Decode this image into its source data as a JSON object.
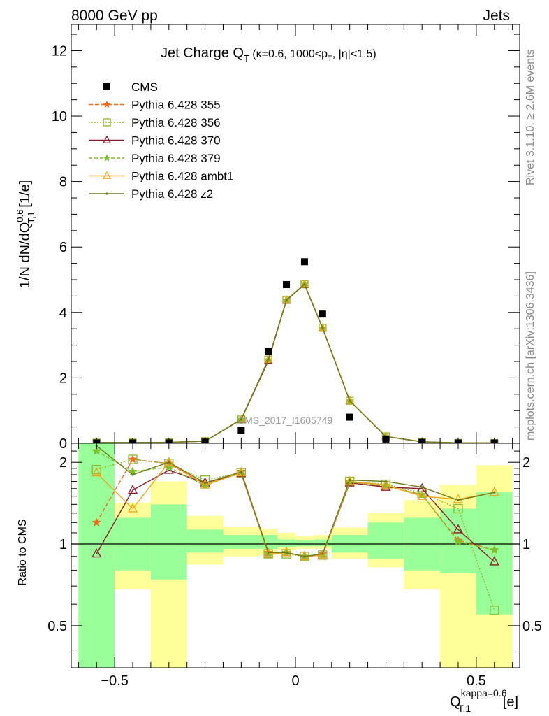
{
  "header": {
    "left": "8000 GeV pp",
    "right": "Jets",
    "side_rivet": "Rivet 3.1.10, ≥ 2.6M events",
    "side_mcplots": "mcplots.cern.ch [arXiv:1306.3436]"
  },
  "chart_data": [
    {
      "type": "scatter",
      "title": {
        "main": "Jet Charge Q",
        "main_sub": "T",
        "rest_a": " (κ=0.6, 1000<p",
        "rest_sub": "T",
        "rest_b": ", |η|<1.5)"
      },
      "ylabel": {
        "a": "1/N dN/dQ",
        "sup": "0.6",
        "sub": "T,1",
        "b": " [1/e]"
      },
      "watermark": "CMS_2017_I1605749",
      "xlim": [
        -0.62,
        0.62
      ],
      "ylim": [
        0,
        12.8
      ],
      "y_ticks": [
        0,
        2,
        4,
        6,
        8,
        10,
        12
      ],
      "y_tick_labels": [
        "0",
        "2",
        "4",
        "6",
        "8",
        "10",
        "12"
      ],
      "x": [
        -0.55,
        -0.45,
        -0.35,
        -0.25,
        -0.15,
        -0.075,
        -0.025,
        0.025,
        0.075,
        0.15,
        0.25,
        0.35,
        0.45,
        0.55
      ],
      "data": {
        "name": "CMS",
        "values": [
          0.012,
          0.012,
          0.015,
          0.04,
          0.4,
          2.8,
          4.85,
          5.55,
          3.95,
          0.8,
          0.13,
          0.03,
          0.01,
          0.01
        ]
      },
      "series": [
        {
          "name": "Pythia 6.428 355",
          "color": "#f26a1f",
          "dash": "6,3",
          "marker": "star",
          "values": [
            0.014,
            0.025,
            0.03,
            0.065,
            0.73,
            2.55,
            4.37,
            4.86,
            3.52,
            1.3,
            0.21,
            0.045,
            0.012,
            0.01
          ]
        },
        {
          "name": "Pythia 6.428 356",
          "color": "#8db82a",
          "dash": "2,2",
          "marker": "square",
          "values": [
            0.022,
            0.025,
            0.03,
            0.066,
            0.73,
            2.56,
            4.38,
            4.86,
            3.53,
            1.3,
            0.21,
            0.046,
            0.013,
            0.006
          ]
        },
        {
          "name": "Pythia 6.428 370",
          "color": "#8b1a2a",
          "dash": "",
          "marker": "triangle",
          "values": [
            0.011,
            0.019,
            0.028,
            0.065,
            0.72,
            2.52,
            4.37,
            4.85,
            3.52,
            1.3,
            0.21,
            0.046,
            0.011,
            0.009
          ]
        },
        {
          "name": "Pythia 6.428 379",
          "color": "#7cc02a",
          "dash": "5,3",
          "marker": "star",
          "values": [
            0.026,
            0.022,
            0.03,
            0.065,
            0.73,
            2.55,
            4.37,
            4.86,
            3.52,
            1.3,
            0.21,
            0.045,
            0.011,
            0.01
          ]
        },
        {
          "name": "Pythia 6.428 ambt1",
          "color": "#f2a51a",
          "dash": "",
          "marker": "triangle",
          "values": [
            0.024,
            0.016,
            0.03,
            0.066,
            0.73,
            2.56,
            4.38,
            4.86,
            3.53,
            1.3,
            0.21,
            0.046,
            0.014,
            0.016
          ]
        },
        {
          "name": "Pythia 6.428 z2",
          "color": "#6b7a1a",
          "dash": "",
          "marker": "dot",
          "values": [
            0.028,
            0.021,
            0.03,
            0.066,
            0.73,
            2.56,
            4.38,
            4.86,
            3.53,
            1.3,
            0.21,
            0.047,
            0.014,
            0.016
          ]
        }
      ]
    },
    {
      "type": "scatter",
      "ylabel": "Ratio to CMS",
      "xlabel": {
        "a": "Q",
        "sup": "kappa=0.6",
        "sub": "T,1",
        "b": " [e]"
      },
      "xlim": [
        -0.62,
        0.62
      ],
      "ylim": [
        0.35,
        2.35
      ],
      "x_ticks": [
        -0.5,
        0,
        0.5
      ],
      "x_tick_labels": [
        "−0.5",
        "0",
        "0.5"
      ],
      "y_ticks": [
        0.5,
        1,
        2
      ],
      "y_tick_labels": [
        "0.5",
        "1",
        "2"
      ],
      "reference": 1,
      "bins": [
        [
          -0.6,
          -0.5
        ],
        [
          -0.5,
          -0.4
        ],
        [
          -0.4,
          -0.3
        ],
        [
          -0.3,
          -0.2
        ],
        [
          -0.2,
          -0.1
        ],
        [
          -0.1,
          -0.05
        ],
        [
          -0.05,
          0
        ],
        [
          0,
          0.05
        ],
        [
          0.05,
          0.1
        ],
        [
          0.1,
          0.2
        ],
        [
          0.2,
          0.3
        ],
        [
          0.3,
          0.4
        ],
        [
          0.4,
          0.5
        ],
        [
          0.5,
          0.6
        ]
      ],
      "band_1sigma": [
        [
          0.35,
          2.35
        ],
        [
          0.8,
          1.25
        ],
        [
          0.74,
          1.4
        ],
        [
          0.93,
          1.13
        ],
        [
          0.96,
          1.08
        ],
        [
          0.96,
          1.08
        ],
        [
          0.975,
          1.04
        ],
        [
          0.98,
          1.03
        ],
        [
          0.98,
          1.04
        ],
        [
          0.93,
          1.08
        ],
        [
          0.88,
          1.2
        ],
        [
          0.8,
          1.25
        ],
        [
          0.78,
          1.35
        ],
        [
          0.55,
          1.55
        ]
      ],
      "band_2sigma": [
        [
          0.35,
          2.35
        ],
        [
          0.68,
          1.42
        ],
        [
          0.35,
          1.7
        ],
        [
          0.84,
          1.27
        ],
        [
          0.9,
          1.16
        ],
        [
          0.91,
          1.14
        ],
        [
          0.95,
          1.1
        ],
        [
          0.96,
          1.07
        ],
        [
          0.96,
          1.08
        ],
        [
          0.88,
          1.15
        ],
        [
          0.82,
          1.3
        ],
        [
          0.68,
          1.45
        ],
        [
          0.35,
          1.65
        ],
        [
          0.35,
          1.95
        ]
      ],
      "series": [
        {
          "values": [
            1.2,
            2.05,
            1.98,
            1.65,
            1.85,
            0.93,
            0.93,
            0.9,
            0.92,
            1.7,
            1.63,
            1.52,
            1.03,
            0.95
          ]
        },
        {
          "values": [
            1.88,
            2.05,
            1.98,
            1.72,
            1.83,
            0.92,
            0.92,
            0.9,
            0.91,
            1.7,
            1.66,
            1.54,
            1.35,
            0.57
          ]
        },
        {
          "values": [
            0.92,
            1.58,
            1.87,
            1.68,
            1.82,
            0.92,
            0.93,
            0.9,
            0.91,
            1.68,
            1.62,
            1.6,
            1.13,
            0.86
          ]
        },
        {
          "values": [
            2.2,
            1.85,
            1.92,
            1.64,
            1.84,
            0.92,
            0.93,
            0.9,
            0.91,
            1.69,
            1.64,
            1.52,
            1.02,
            0.95
          ]
        },
        {
          "values": [
            1.83,
            1.35,
            2.0,
            1.65,
            1.83,
            0.92,
            0.93,
            0.9,
            0.91,
            1.7,
            1.65,
            1.5,
            1.46,
            1.55
          ]
        },
        {
          "values": [
            2.3,
            1.8,
            2.0,
            1.68,
            1.84,
            0.93,
            0.93,
            0.9,
            0.92,
            1.72,
            1.7,
            1.62,
            1.45,
            1.55
          ]
        }
      ]
    }
  ]
}
